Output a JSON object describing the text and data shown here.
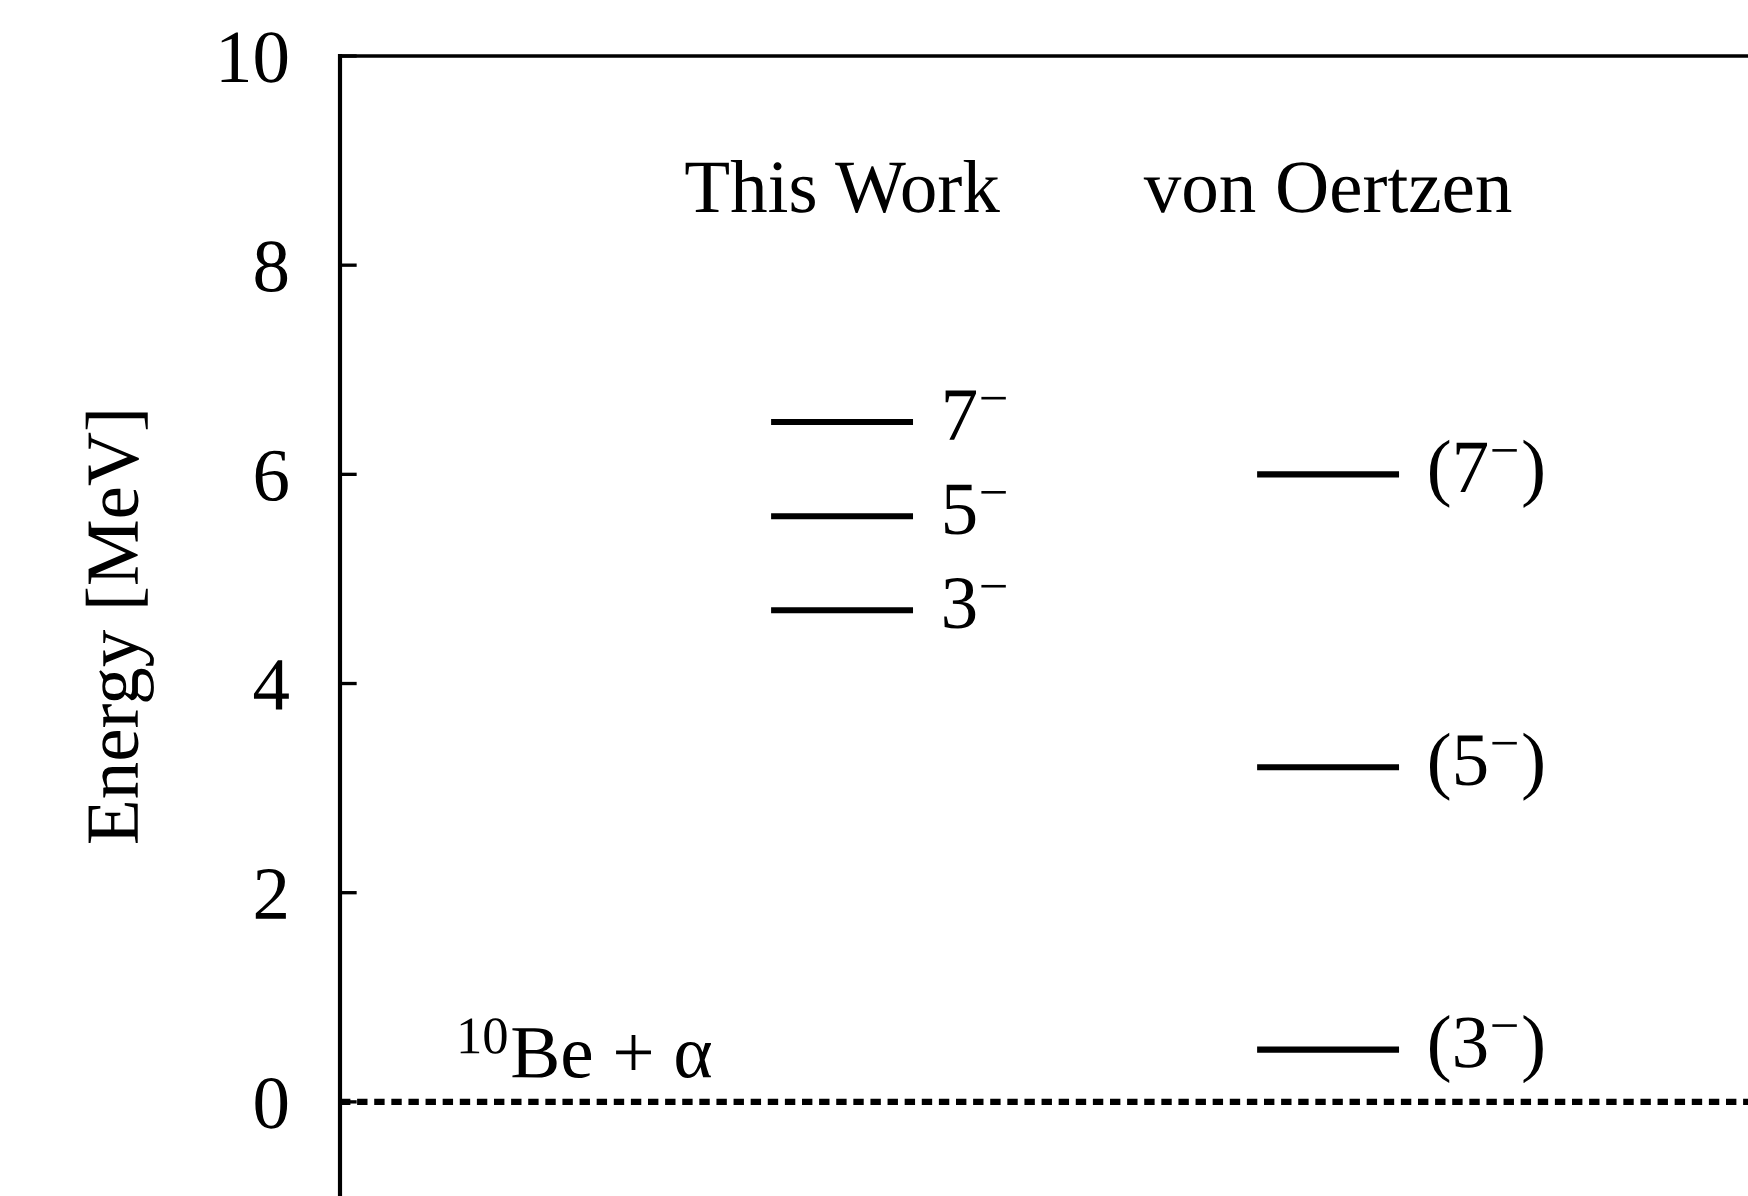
{
  "chart_data": {
    "type": "bar",
    "ylabel": "Energy [MeV]",
    "categories": [
      "This Work",
      "von Oertzen"
    ],
    "series": [
      {
        "color": "#000000",
        "base": [
          4.7,
          0.5
        ],
        "values": [
          0,
          0
        ]
      },
      {
        "color": "#000000",
        "base": [
          5.6,
          3.2
        ],
        "values": [
          0,
          0
        ]
      },
      {
        "color": "#000000",
        "base": [
          6.5,
          6.0
        ],
        "values": [
          0,
          0
        ]
      }
    ],
    "annotations": [
      {
        "text": "3$^{−}$",
        "x": "This Work",
        "y": 4.7
      },
      {
        "text": "5$^{−}$",
        "x": "This Work",
        "y": 5.6
      },
      {
        "text": "7$^{−}$",
        "x": "This Work",
        "y": 6.5
      },
      {
        "text": "(3$^{−}$)",
        "x": "von Oertzen",
        "y": 0.5
      },
      {
        "text": "(5$^{−}$)",
        "x": "von Oertzen",
        "y": 3.2
      },
      {
        "text": "(7$^{−}$)",
        "x": "von Oertzen",
        "y": 6.0
      }
    ],
    "ylim": [
      -0.9,
      10
    ],
    "yticks": [
      0,
      2,
      4,
      6,
      8,
      10
    ],
    "ref_lines": [
      {
        "axis": "y",
        "value": 0,
        "label": "$^{10}$Be + α",
        "color": "#000000",
        "line_style": "dotted"
      }
    ],
    "grid": false
  }
}
